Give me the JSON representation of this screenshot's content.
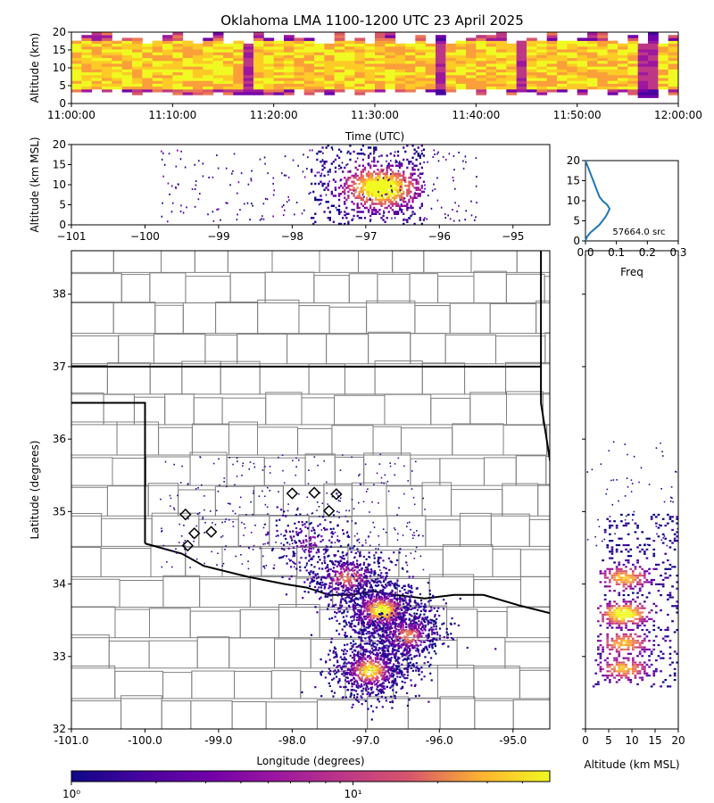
{
  "title": "Oklahoma LMA 1100-1200 UTC 23 April 2025",
  "colors": {
    "low": "#0d0887",
    "mid": "#cc4778",
    "high": "#f0f921",
    "border_state": "#000000",
    "border_county": "#808080",
    "freq_line": "#1f77b4"
  },
  "colormap": "plasma",
  "chart_data": [
    {
      "id": "time_height",
      "type": "heatmap",
      "title": "",
      "xlabel": "Time (UTC)",
      "ylabel": "Altitude (km)",
      "xlim": [
        "11:00:00",
        "12:00:00"
      ],
      "ylim": [
        0,
        20
      ],
      "xticks": [
        "11:00:00",
        "11:10:00",
        "11:20:00",
        "11:30:00",
        "11:40:00",
        "11:50:00",
        "12:00:00"
      ],
      "yticks": [
        "0",
        "5",
        "10",
        "15",
        "20"
      ],
      "density_core_altitude_km": [
        4,
        17
      ]
    },
    {
      "id": "lon_alt",
      "type": "heatmap",
      "xlabel": "",
      "ylabel": "Altitude (km MSL)",
      "xlim": [
        -101,
        -94.5
      ],
      "ylim": [
        0,
        20
      ],
      "xticks": [
        "−101",
        "−100",
        "−99",
        "−98",
        "−97",
        "−96",
        "−95"
      ],
      "yticks": [
        "0",
        "5",
        "10",
        "15",
        "20"
      ],
      "core_lon": [
        -97.7,
        -96.2
      ],
      "peak_lon": -96.8,
      "peak_alt_km": 9
    },
    {
      "id": "freq_profile",
      "type": "line",
      "xlabel": "Freq",
      "ylabel": "",
      "xlim": [
        0,
        0.3
      ],
      "ylim": [
        0,
        20
      ],
      "xticks": [
        "0.0",
        "0.1",
        "0.2",
        "0.3"
      ],
      "yticks": [
        "0",
        "5",
        "10",
        "15",
        "20"
      ],
      "annotation": "57664.0 src",
      "series": [
        {
          "altitude": [
            0,
            1,
            2,
            3,
            4,
            5,
            6,
            7,
            8,
            9,
            10,
            11,
            12,
            13,
            14,
            15,
            16,
            17,
            18,
            19,
            20
          ],
          "freq": [
            0.0,
            0.005,
            0.015,
            0.03,
            0.045,
            0.055,
            0.065,
            0.072,
            0.078,
            0.07,
            0.055,
            0.045,
            0.04,
            0.035,
            0.03,
            0.025,
            0.02,
            0.015,
            0.01,
            0.005,
            0.0
          ]
        }
      ]
    },
    {
      "id": "plan_view",
      "type": "heatmap",
      "xlabel": "Longitude (degrees)",
      "ylabel": "Latitude (degrees)",
      "xlim": [
        -101,
        -94.5
      ],
      "ylim": [
        32,
        38.6
      ],
      "xticks": [
        "-101.0",
        "-100.0",
        "-99.0",
        "-98.0",
        "-97.0",
        "-96.0",
        "-95.0"
      ],
      "yticks": [
        "32",
        "33",
        "34",
        "35",
        "36",
        "37",
        "38"
      ],
      "stations": [
        {
          "lon": -98.0,
          "lat": 35.25
        },
        {
          "lon": -97.7,
          "lat": 35.26
        },
        {
          "lon": -97.4,
          "lat": 35.24
        },
        {
          "lon": -97.5,
          "lat": 35.01
        },
        {
          "lon": -99.45,
          "lat": 34.96
        },
        {
          "lon": -99.33,
          "lat": 34.7
        },
        {
          "lon": -99.1,
          "lat": 34.72
        },
        {
          "lon": -99.42,
          "lat": 34.53
        }
      ],
      "clusters": [
        {
          "lon": -97.25,
          "lat": 34.1,
          "weight": 0.55
        },
        {
          "lon": -96.8,
          "lat": 33.65,
          "weight": 1.0
        },
        {
          "lon": -96.45,
          "lat": 33.3,
          "weight": 0.6
        },
        {
          "lon": -96.95,
          "lat": 32.82,
          "weight": 0.9
        },
        {
          "lon": -97.8,
          "lat": 34.6,
          "weight": 0.2
        }
      ]
    },
    {
      "id": "alt_lat",
      "type": "heatmap",
      "xlabel": "Altitude (km MSL)",
      "ylabel": "",
      "xlim": [
        0,
        20
      ],
      "ylim": [
        32,
        38.6
      ],
      "xticks": [
        "0",
        "5",
        "10",
        "15",
        "20"
      ],
      "yticks": []
    },
    {
      "id": "colorbar",
      "type": "heatmap",
      "scale": "log",
      "range": [
        1,
        50
      ],
      "ticks": [
        "10⁰",
        "10¹"
      ]
    }
  ]
}
